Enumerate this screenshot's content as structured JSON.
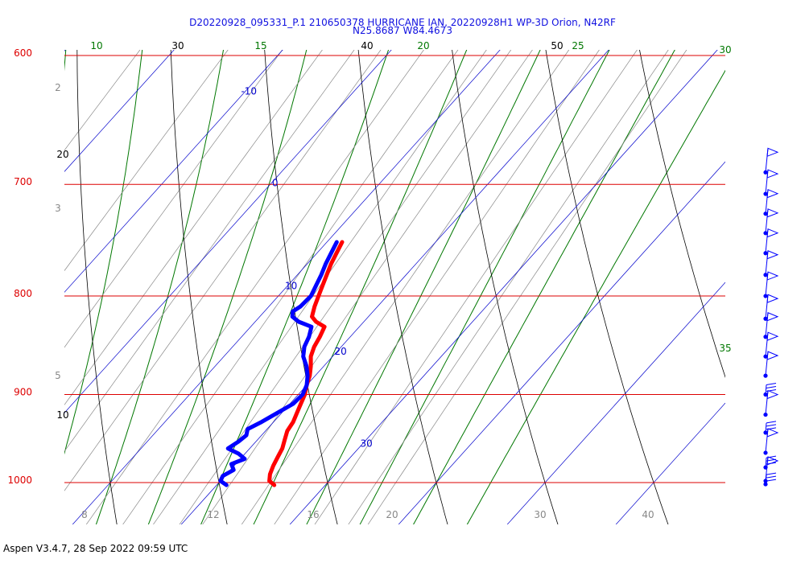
{
  "header": {
    "title_line1": "D20220928_095331_P.1 210650378 HURRICANE IAN, 20220928H1 WP-3D Orion, N42RF",
    "title_line2": "N25.8687 W84.4673"
  },
  "footer": {
    "text": "Aspen V3.4.7, 28 Sep 2022  09:59 UTC"
  },
  "colors": {
    "isobar": "#dd0000",
    "dry_adiabat": "#000000",
    "moist_adiabat": "#007700",
    "isotherm": "#0000cc",
    "mixing_ratio": "#888888",
    "temperature_trace": "#ff0000",
    "dewpoint_trace": "#0000ff",
    "wind_barbs": "#0000ff",
    "pressure_label": "#dd0000"
  },
  "chart_data": {
    "type": "skew-t",
    "y_scale": "log-pressure",
    "pressure_levels": [
      {
        "p": 600,
        "label": "600"
      },
      {
        "p": 700,
        "label": "700"
      },
      {
        "p": 800,
        "label": "800"
      },
      {
        "p": 900,
        "label": "900"
      },
      {
        "p": 1000,
        "label": "1000"
      }
    ],
    "isotherm_labels": [
      "-10",
      "0",
      "10",
      "20",
      "30"
    ],
    "dry_adiabat_labels": [
      "10",
      "20",
      "30",
      "40",
      "50"
    ],
    "moist_adiabat_labels": [
      "10",
      "15",
      "20",
      "25",
      "30",
      "35"
    ],
    "mixing_ratio_side_labels": [
      "2",
      "3",
      "5"
    ],
    "mixing_ratio_bottom_labels": [
      "8",
      "12",
      "16",
      "20",
      "30",
      "40"
    ],
    "temperature_profile": [
      {
        "p": 1003,
        "t": 25.3
      },
      {
        "p": 998,
        "t": 24.5
      },
      {
        "p": 990,
        "t": 24.0
      },
      {
        "p": 980,
        "t": 23.6
      },
      {
        "p": 970,
        "t": 23.3
      },
      {
        "p": 960,
        "t": 23.0
      },
      {
        "p": 950,
        "t": 22.5
      },
      {
        "p": 940,
        "t": 22.0
      },
      {
        "p": 930,
        "t": 21.8
      },
      {
        "p": 920,
        "t": 21.4
      },
      {
        "p": 910,
        "t": 21.0
      },
      {
        "p": 900,
        "t": 20.6
      },
      {
        "p": 890,
        "t": 20.0
      },
      {
        "p": 880,
        "t": 19.5
      },
      {
        "p": 870,
        "t": 18.8
      },
      {
        "p": 860,
        "t": 18.0
      },
      {
        "p": 850,
        "t": 17.5
      },
      {
        "p": 840,
        "t": 17.2
      },
      {
        "p": 830,
        "t": 16.8
      },
      {
        "p": 825,
        "t": 15.6
      },
      {
        "p": 820,
        "t": 14.8
      },
      {
        "p": 810,
        "t": 14.2
      },
      {
        "p": 800,
        "t": 13.7
      },
      {
        "p": 790,
        "t": 13.2
      },
      {
        "p": 780,
        "t": 12.7
      },
      {
        "p": 770,
        "t": 12.2
      },
      {
        "p": 760,
        "t": 11.8
      },
      {
        "p": 750,
        "t": 11.4
      }
    ],
    "dewpoint_profile": [
      {
        "p": 1003,
        "t": 20.9
      },
      {
        "p": 998,
        "t": 20.0
      },
      {
        "p": 992,
        "t": 19.8
      },
      {
        "p": 985,
        "t": 20.3
      },
      {
        "p": 978,
        "t": 19.6
      },
      {
        "p": 972,
        "t": 20.4
      },
      {
        "p": 966,
        "t": 19.4
      },
      {
        "p": 960,
        "t": 18.0
      },
      {
        "p": 952,
        "t": 18.4
      },
      {
        "p": 945,
        "t": 18.6
      },
      {
        "p": 938,
        "t": 18.2
      },
      {
        "p": 930,
        "t": 18.9
      },
      {
        "p": 920,
        "t": 19.6
      },
      {
        "p": 910,
        "t": 20.3
      },
      {
        "p": 900,
        "t": 20.4
      },
      {
        "p": 890,
        "t": 20.0
      },
      {
        "p": 880,
        "t": 19.3
      },
      {
        "p": 870,
        "t": 18.4
      },
      {
        "p": 860,
        "t": 17.3
      },
      {
        "p": 850,
        "t": 16.6
      },
      {
        "p": 840,
        "t": 16.2
      },
      {
        "p": 830,
        "t": 15.6
      },
      {
        "p": 825,
        "t": 14.0
      },
      {
        "p": 820,
        "t": 13.0
      },
      {
        "p": 815,
        "t": 12.6
      },
      {
        "p": 810,
        "t": 12.9
      },
      {
        "p": 800,
        "t": 13.0
      },
      {
        "p": 790,
        "t": 12.6
      },
      {
        "p": 780,
        "t": 12.2
      },
      {
        "p": 770,
        "t": 11.7
      },
      {
        "p": 760,
        "t": 11.3
      },
      {
        "p": 750,
        "t": 10.9
      }
    ],
    "wind_barb_levels": [
      1002,
      998,
      982,
      965,
      942,
      922,
      900,
      880,
      860,
      840,
      822,
      800,
      780,
      760,
      742,
      725,
      708,
      690
    ]
  }
}
